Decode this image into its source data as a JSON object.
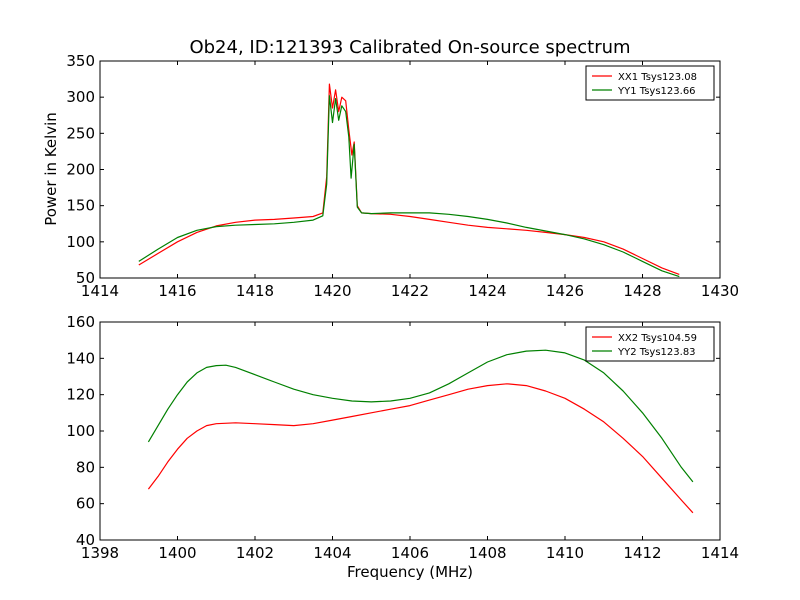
{
  "chart_data": [
    {
      "type": "line",
      "title": "Ob24, ID:121393 Calibrated On-source spectrum",
      "xlabel": "",
      "ylabel": "Power in Kelvin",
      "xlim": [
        1414,
        1430
      ],
      "ylim": [
        50,
        350
      ],
      "xticks": [
        "1414",
        "1416",
        "1418",
        "1420",
        "1422",
        "1424",
        "1426",
        "1428",
        "1430"
      ],
      "yticks": [
        "50",
        "100",
        "150",
        "200",
        "250",
        "300",
        "350"
      ],
      "grid": false,
      "legend_position": "top-right",
      "series": [
        {
          "name": "XX1 Tsys123.08",
          "color": "#ff0000",
          "points": [
            [
              1415.0,
              68
            ],
            [
              1415.5,
              84
            ],
            [
              1416.0,
              100
            ],
            [
              1416.5,
              113
            ],
            [
              1417.0,
              122
            ],
            [
              1417.5,
              127
            ],
            [
              1418.0,
              130
            ],
            [
              1418.5,
              131
            ],
            [
              1419.0,
              133
            ],
            [
              1419.5,
              135
            ],
            [
              1419.75,
              140
            ],
            [
              1419.85,
              190
            ],
            [
              1419.92,
              318
            ],
            [
              1420.0,
              285
            ],
            [
              1420.08,
              310
            ],
            [
              1420.16,
              280
            ],
            [
              1420.24,
              300
            ],
            [
              1420.34,
              295
            ],
            [
              1420.42,
              255
            ],
            [
              1420.5,
              220
            ],
            [
              1420.56,
              238
            ],
            [
              1420.64,
              150
            ],
            [
              1420.75,
              140
            ],
            [
              1421.0,
              139
            ],
            [
              1421.5,
              138
            ],
            [
              1422.0,
              135
            ],
            [
              1422.5,
              131
            ],
            [
              1423.0,
              127
            ],
            [
              1423.5,
              123
            ],
            [
              1424.0,
              120
            ],
            [
              1424.5,
              118
            ],
            [
              1425.0,
              116
            ],
            [
              1425.5,
              113
            ],
            [
              1426.0,
              110
            ],
            [
              1426.5,
              106
            ],
            [
              1427.0,
              100
            ],
            [
              1427.5,
              90
            ],
            [
              1428.0,
              77
            ],
            [
              1428.5,
              64
            ],
            [
              1428.95,
              55
            ]
          ]
        },
        {
          "name": "YY1 Tsys123.66",
          "color": "#008000",
          "points": [
            [
              1415.0,
              73
            ],
            [
              1415.5,
              90
            ],
            [
              1416.0,
              106
            ],
            [
              1416.5,
              116
            ],
            [
              1417.0,
              121
            ],
            [
              1417.5,
              123
            ],
            [
              1418.0,
              124
            ],
            [
              1418.5,
              125
            ],
            [
              1419.0,
              127
            ],
            [
              1419.5,
              130
            ],
            [
              1419.75,
              136
            ],
            [
              1419.85,
              180
            ],
            [
              1419.92,
              302
            ],
            [
              1420.0,
              265
            ],
            [
              1420.08,
              298
            ],
            [
              1420.16,
              268
            ],
            [
              1420.24,
              288
            ],
            [
              1420.34,
              280
            ],
            [
              1420.42,
              245
            ],
            [
              1420.48,
              188
            ],
            [
              1420.56,
              235
            ],
            [
              1420.64,
              148
            ],
            [
              1420.75,
              140
            ],
            [
              1421.0,
              139
            ],
            [
              1421.5,
              140
            ],
            [
              1422.0,
              140
            ],
            [
              1422.5,
              140
            ],
            [
              1423.0,
              138
            ],
            [
              1423.5,
              135
            ],
            [
              1424.0,
              131
            ],
            [
              1424.5,
              126
            ],
            [
              1425.0,
              120
            ],
            [
              1425.5,
              115
            ],
            [
              1426.0,
              110
            ],
            [
              1426.5,
              104
            ],
            [
              1427.0,
              96
            ],
            [
              1427.5,
              86
            ],
            [
              1428.0,
              73
            ],
            [
              1428.5,
              60
            ],
            [
              1428.95,
              52
            ]
          ]
        }
      ]
    },
    {
      "type": "line",
      "title": "",
      "xlabel": "Frequency (MHz)",
      "ylabel": "",
      "xlim": [
        1398,
        1414
      ],
      "ylim": [
        40,
        160
      ],
      "xticks": [
        "1398",
        "1400",
        "1402",
        "1404",
        "1406",
        "1408",
        "1410",
        "1412",
        "1414"
      ],
      "yticks": [
        "40",
        "60",
        "80",
        "100",
        "120",
        "140",
        "160"
      ],
      "grid": false,
      "legend_position": "top-right",
      "series": [
        {
          "name": "XX2 Tsys104.59",
          "color": "#ff0000",
          "points": [
            [
              1399.25,
              68
            ],
            [
              1399.5,
              75
            ],
            [
              1399.75,
              83
            ],
            [
              1400.0,
              90
            ],
            [
              1400.25,
              96
            ],
            [
              1400.5,
              100
            ],
            [
              1400.75,
              103
            ],
            [
              1401.0,
              104
            ],
            [
              1401.5,
              104.5
            ],
            [
              1402.0,
              104
            ],
            [
              1402.5,
              103.5
            ],
            [
              1403.0,
              103
            ],
            [
              1403.5,
              104
            ],
            [
              1404.0,
              106
            ],
            [
              1404.5,
              108
            ],
            [
              1405.0,
              110
            ],
            [
              1405.5,
              112
            ],
            [
              1406.0,
              114
            ],
            [
              1406.5,
              117
            ],
            [
              1407.0,
              120
            ],
            [
              1407.5,
              123
            ],
            [
              1408.0,
              125
            ],
            [
              1408.5,
              126
            ],
            [
              1409.0,
              125
            ],
            [
              1409.5,
              122
            ],
            [
              1410.0,
              118
            ],
            [
              1410.5,
              112
            ],
            [
              1411.0,
              105
            ],
            [
              1411.5,
              96
            ],
            [
              1412.0,
              86
            ],
            [
              1412.5,
              74
            ],
            [
              1413.0,
              62
            ],
            [
              1413.3,
              55
            ]
          ]
        },
        {
          "name": "YY2 Tsys123.83",
          "color": "#008000",
          "points": [
            [
              1399.25,
              94
            ],
            [
              1399.5,
              103
            ],
            [
              1399.75,
              112
            ],
            [
              1400.0,
              120
            ],
            [
              1400.25,
              127
            ],
            [
              1400.5,
              132
            ],
            [
              1400.75,
              135
            ],
            [
              1401.0,
              136
            ],
            [
              1401.25,
              136.2
            ],
            [
              1401.5,
              135
            ],
            [
              1402.0,
              131
            ],
            [
              1402.5,
              127
            ],
            [
              1403.0,
              123
            ],
            [
              1403.5,
              120
            ],
            [
              1404.0,
              118
            ],
            [
              1404.5,
              116.5
            ],
            [
              1405.0,
              116
            ],
            [
              1405.5,
              116.5
            ],
            [
              1406.0,
              118
            ],
            [
              1406.5,
              121
            ],
            [
              1407.0,
              126
            ],
            [
              1407.5,
              132
            ],
            [
              1408.0,
              138
            ],
            [
              1408.5,
              142
            ],
            [
              1409.0,
              144
            ],
            [
              1409.5,
              144.5
            ],
            [
              1410.0,
              143
            ],
            [
              1410.5,
              139
            ],
            [
              1411.0,
              132
            ],
            [
              1411.5,
              122
            ],
            [
              1412.0,
              110
            ],
            [
              1412.5,
              96
            ],
            [
              1413.0,
              80
            ],
            [
              1413.3,
              72
            ]
          ]
        }
      ]
    }
  ]
}
